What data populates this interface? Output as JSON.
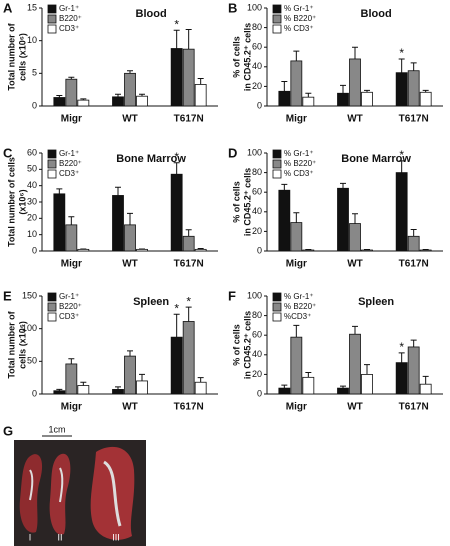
{
  "chart_data": [
    {
      "panel": "A",
      "type": "bar",
      "title": "Blood",
      "y_label": [
        "Total number of",
        "cells (x10⁶)"
      ],
      "categories": [
        "Migr",
        "WT",
        "T617N"
      ],
      "ylim": [
        0,
        15
      ],
      "yticks": [
        0,
        5,
        10,
        15
      ],
      "legend": "upper left",
      "series": [
        {
          "name": "Gr-1⁺",
          "color": "#111111",
          "values": [
            1.3,
            1.4,
            8.8
          ],
          "errors": [
            0.3,
            0.4,
            2.8
          ],
          "significance": [
            null,
            null,
            "*"
          ]
        },
        {
          "name": "B220⁺",
          "color": "#888888",
          "values": [
            4.1,
            5.0,
            8.7
          ],
          "errors": [
            0.3,
            0.4,
            3.0
          ],
          "significance": [
            null,
            null,
            null
          ]
        },
        {
          "name": "CD3⁺",
          "color": "#ffffff",
          "values": [
            0.9,
            1.5,
            3.3
          ],
          "errors": [
            0.2,
            0.3,
            0.9
          ],
          "significance": [
            null,
            null,
            null
          ]
        }
      ]
    },
    {
      "panel": "B",
      "type": "bar",
      "title": "Blood",
      "y_label": [
        "% of cells",
        "in CD45.2⁺ cells"
      ],
      "categories": [
        "Migr",
        "WT",
        "T617N"
      ],
      "ylim": [
        0,
        100
      ],
      "yticks": [
        0,
        20,
        40,
        60,
        80,
        100
      ],
      "legend": "upper left",
      "series": [
        {
          "name": "% Gr-1⁺",
          "color": "#111111",
          "values": [
            15,
            13,
            34
          ],
          "errors": [
            10,
            8,
            14
          ],
          "significance": [
            null,
            null,
            "*"
          ]
        },
        {
          "name": "% B220⁺",
          "color": "#888888",
          "values": [
            46,
            48,
            36
          ],
          "errors": [
            10,
            12,
            8
          ],
          "significance": [
            null,
            null,
            null
          ]
        },
        {
          "name": "% CD3⁺",
          "color": "#ffffff",
          "values": [
            9,
            14,
            14
          ],
          "errors": [
            4,
            2,
            2
          ],
          "significance": [
            null,
            null,
            null
          ]
        }
      ]
    },
    {
      "panel": "C",
      "type": "bar",
      "title": "Bone Marrow",
      "y_label": [
        "Total number of cells",
        "(x10⁶)"
      ],
      "categories": [
        "Migr",
        "WT",
        "T617N"
      ],
      "ylim": [
        0,
        60
      ],
      "yticks": [
        0,
        10,
        20,
        30,
        40,
        50,
        60
      ],
      "legend": "upper left",
      "series": [
        {
          "name": "Gr-1⁺",
          "color": "#111111",
          "values": [
            35,
            34,
            47
          ],
          "errors": [
            3,
            5,
            7
          ],
          "significance": [
            null,
            null,
            "*"
          ]
        },
        {
          "name": "B220⁺",
          "color": "#888888",
          "values": [
            16,
            16,
            9
          ],
          "errors": [
            5,
            7,
            4
          ],
          "significance": [
            null,
            null,
            null
          ]
        },
        {
          "name": "CD3⁺",
          "color": "#ffffff",
          "values": [
            1,
            1,
            1
          ],
          "errors": [
            0.2,
            0.2,
            0.5
          ],
          "significance": [
            null,
            null,
            null
          ]
        }
      ]
    },
    {
      "panel": "D",
      "type": "bar",
      "title": "Bone Marrow",
      "y_label": [
        "% of cells",
        "in CD45.2⁺ cells"
      ],
      "categories": [
        "Migr",
        "WT",
        "T617N"
      ],
      "ylim": [
        0,
        100
      ],
      "yticks": [
        0,
        20,
        40,
        60,
        80,
        100
      ],
      "legend": "upper left",
      "series": [
        {
          "name": "% Gr-1⁺",
          "color": "#111111",
          "values": [
            62,
            64,
            80
          ],
          "errors": [
            6,
            5,
            12
          ],
          "significance": [
            null,
            null,
            "*"
          ]
        },
        {
          "name": "% B220⁺",
          "color": "#888888",
          "values": [
            29,
            28,
            15
          ],
          "errors": [
            10,
            10,
            7
          ],
          "significance": [
            null,
            null,
            null
          ]
        },
        {
          "name": "% CD3⁺",
          "color": "#ffffff",
          "values": [
            1,
            1,
            1
          ],
          "errors": [
            0.5,
            0.5,
            0.5
          ],
          "significance": [
            null,
            null,
            null
          ]
        }
      ]
    },
    {
      "panel": "E",
      "type": "bar",
      "title": "Spleen",
      "y_label": [
        "Total number of",
        "cells (x10⁶)"
      ],
      "categories": [
        "Migr",
        "WT",
        "T617N"
      ],
      "ylim": [
        0,
        150
      ],
      "yticks": [
        0,
        50,
        100,
        150
      ],
      "legend": "upper left",
      "series": [
        {
          "name": "Gr-1⁺",
          "color": "#111111",
          "values": [
            5,
            7,
            87
          ],
          "errors": [
            2,
            4,
            35
          ],
          "significance": [
            null,
            null,
            "*"
          ]
        },
        {
          "name": "B220⁺",
          "color": "#888888",
          "values": [
            46,
            58,
            111
          ],
          "errors": [
            8,
            8,
            22
          ],
          "significance": [
            null,
            null,
            "*"
          ]
        },
        {
          "name": "CD3⁺",
          "color": "#ffffff",
          "values": [
            13,
            20,
            18
          ],
          "errors": [
            5,
            10,
            7
          ],
          "significance": [
            null,
            null,
            null
          ]
        }
      ]
    },
    {
      "panel": "F",
      "type": "bar",
      "title": "Spleen",
      "y_label": [
        "% of cells",
        "in CD45.2⁺ cells"
      ],
      "categories": [
        "Migr",
        "WT",
        "T617N"
      ],
      "ylim": [
        0,
        100
      ],
      "yticks": [
        0,
        20,
        40,
        60,
        80,
        100
      ],
      "legend": "upper left",
      "series": [
        {
          "name": "% Gr-1⁺",
          "color": "#111111",
          "values": [
            6,
            6,
            32
          ],
          "errors": [
            3,
            2,
            10
          ],
          "significance": [
            null,
            null,
            "*"
          ]
        },
        {
          "name": "% B220⁺",
          "color": "#888888",
          "values": [
            58,
            61,
            48
          ],
          "errors": [
            12,
            8,
            7
          ],
          "significance": [
            null,
            null,
            null
          ]
        },
        {
          "name": "%CD3⁺",
          "color": "#ffffff",
          "values": [
            17,
            20,
            10
          ],
          "errors": [
            5,
            10,
            8
          ],
          "significance": [
            null,
            null,
            null
          ]
        }
      ]
    }
  ],
  "photo": {
    "panel": "G",
    "scale_label": "1cm",
    "labels": [
      "I",
      "II",
      "III"
    ]
  }
}
